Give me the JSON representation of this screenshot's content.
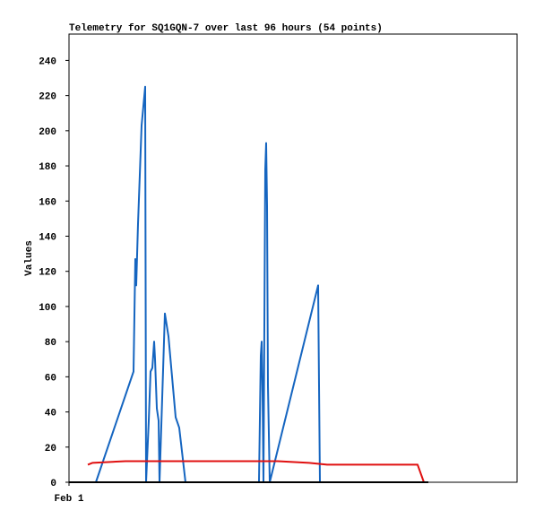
{
  "chart_data": {
    "type": "line",
    "title": "Telemetry for SQ1GQN-7 over last 96 hours (54 points)",
    "y_label": "Values",
    "xlim": [
      0,
      100
    ],
    "xticks": [
      {
        "value": 0,
        "label": "Feb 1"
      }
    ],
    "ylim": [
      0,
      255
    ],
    "yticks": [
      0,
      20,
      40,
      60,
      80,
      100,
      120,
      140,
      160,
      180,
      200,
      220,
      240
    ],
    "grid": false,
    "series": [
      {
        "color": "#1565c0",
        "x": [
          6,
          14.4,
          14.8,
          15,
          15.4,
          15.8,
          16.2,
          16.6,
          17,
          17.2,
          17.8,
          18.2,
          18.6,
          19,
          19.2,
          19.6,
          20,
          20.2,
          21.4,
          22.2,
          23.8,
          24.6,
          26,
          42.4,
          42.8,
          43,
          43.2,
          43.4,
          43.8,
          44,
          44.2,
          44.4,
          44.8,
          55.6,
          55.8,
          56
        ],
        "values": [
          0,
          63,
          127,
          112,
          147,
          175,
          203,
          214,
          225,
          0,
          35,
          63,
          65,
          80,
          70,
          42,
          35,
          0,
          96,
          83,
          37,
          31,
          0,
          0,
          72,
          80,
          50,
          0,
          178,
          193,
          157,
          55,
          0,
          112,
          55,
          0
        ]
      },
      {
        "color": "#e01010",
        "x": [
          4.2,
          5.2,
          12.6,
          46.6,
          53.6,
          57.6,
          77.8,
          79.2
        ],
        "values": [
          10,
          11,
          12,
          12,
          11,
          10,
          10,
          0
        ]
      },
      {
        "color": "#000000",
        "x": [
          0,
          80.2
        ],
        "values": [
          0,
          0
        ]
      }
    ]
  }
}
